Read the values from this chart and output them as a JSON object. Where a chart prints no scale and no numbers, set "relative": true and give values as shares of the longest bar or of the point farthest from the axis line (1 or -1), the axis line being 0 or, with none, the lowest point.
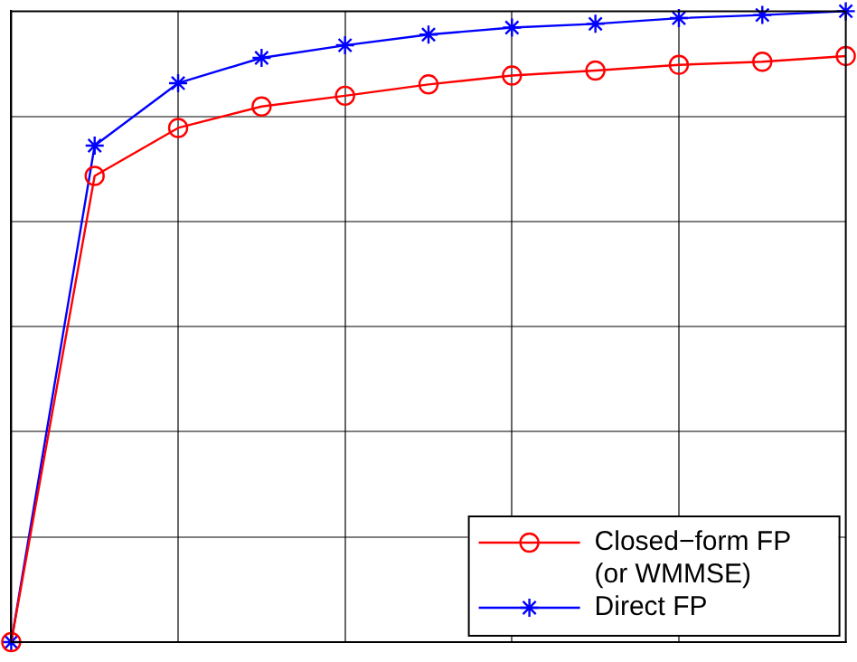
{
  "chart_data": {
    "type": "line",
    "relative": true,
    "grid": true,
    "legend": "bottom right",
    "categories": [
      null,
      null,
      null,
      null,
      null,
      null,
      null,
      null,
      null,
      null,
      null
    ],
    "series": [
      {
        "name": "Closed−form FP (or WMMSE)",
        "color": "#ff0000",
        "marker": "circle",
        "values": [
          0,
          0.739,
          0.815,
          0.849,
          0.866,
          0.884,
          0.898,
          0.906,
          0.915,
          0.92,
          0.929
        ]
      },
      {
        "name": "Direct FP",
        "color": "#0000ff",
        "marker": "cross",
        "values": [
          0,
          0.787,
          0.886,
          0.926,
          0.946,
          0.963,
          0.974,
          0.98,
          0.989,
          0.994,
          1.0
        ]
      }
    ]
  }
}
